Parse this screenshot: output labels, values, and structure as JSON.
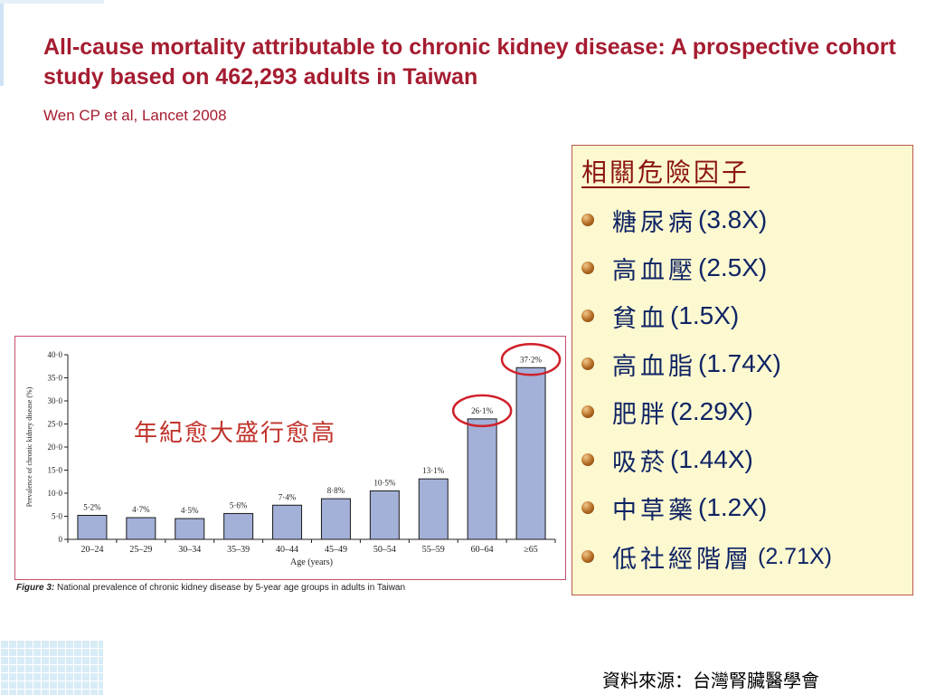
{
  "title": "All-cause mortality attributable to chronic kidney disease: A prospective cohort study based on 462,293 adults in Taiwan",
  "citation": "Wen CP et al, Lancet 2008",
  "overlay_note": "年紀愈大盛行愈高",
  "risk_factors": {
    "heading": "相關危險因子",
    "items": [
      {
        "name": "糖尿病",
        "ratio": "(3.8X)"
      },
      {
        "name": "高血壓",
        "ratio": "(2.5X)"
      },
      {
        "name": "貧血",
        "ratio": "(1.5X)"
      },
      {
        "name": "高血脂",
        "ratio": "(1.74X)"
      },
      {
        "name": "肥胖",
        "ratio": "(2.29X)"
      },
      {
        "name": "吸菸",
        "ratio": "(1.44X)"
      },
      {
        "name": "中草藥",
        "ratio": "(1.2X)"
      },
      {
        "name": "低社經階層",
        "ratio": "(2.71X)"
      }
    ]
  },
  "figure_caption": {
    "label": "Figure 3:",
    "text": "National prevalence of chronic kidney disease by 5-year age groups in adults in Taiwan"
  },
  "source": "資料來源：台灣腎臟醫學會",
  "colors": {
    "title": "#a51c30",
    "bar_fill": "#a3b0d8",
    "bar_stroke": "#1a1a1a",
    "highlight_circle": "#d0202a",
    "risk_text": "#0f2464",
    "risk_heading": "#8a1410",
    "risk_box_bg": "#fcf8d0"
  },
  "chart_data": {
    "type": "bar",
    "categories": [
      "20–24",
      "25–29",
      "30–34",
      "35–39",
      "40–44",
      "45–49",
      "50–54",
      "55–59",
      "60–64",
      "≥65"
    ],
    "values": [
      5.2,
      4.7,
      4.5,
      5.6,
      7.4,
      8.8,
      10.5,
      13.1,
      26.1,
      37.2
    ],
    "value_labels": [
      "5·2%",
      "4·7%",
      "4·5%",
      "5·6%",
      "7·4%",
      "8·8%",
      "10·5%",
      "13·1%",
      "26·1%",
      "37·2%"
    ],
    "highlighted_indices": [
      8,
      9
    ],
    "xlabel": "Age (years)",
    "ylabel": "Prevalence of chronic kidney disease (%)",
    "ylim": [
      0,
      40
    ],
    "yticks": [
      0,
      5,
      10,
      15,
      20,
      25,
      30,
      35,
      40
    ],
    "ytick_labels": [
      "0",
      "5·0",
      "10·0",
      "15·0",
      "20·0",
      "25·0",
      "30·0",
      "35·0",
      "40·0"
    ],
    "grid": false,
    "legend": "none"
  }
}
